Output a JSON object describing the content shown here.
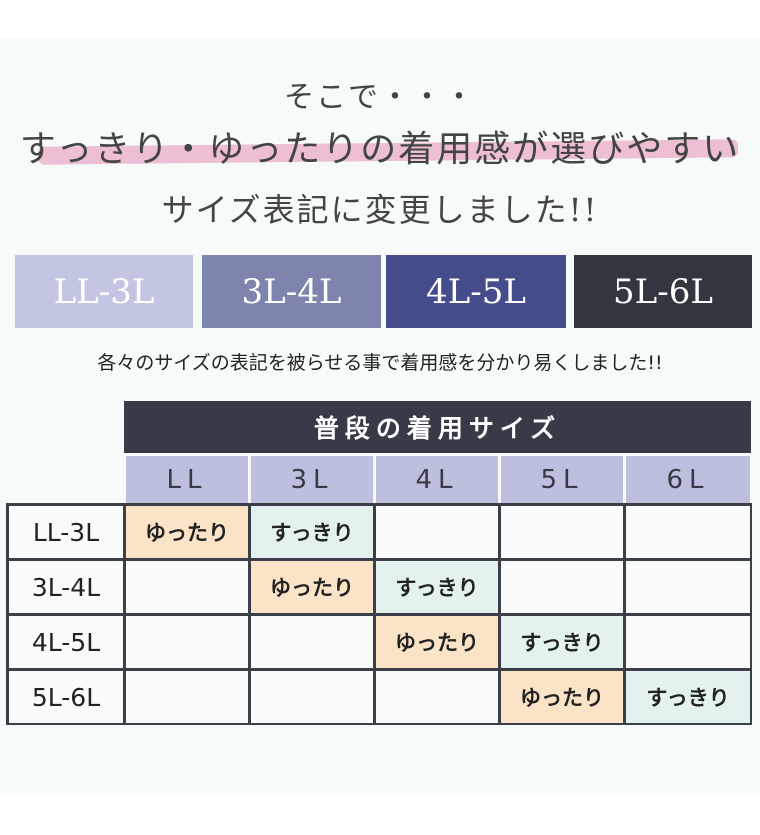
{
  "headline": {
    "line1": "そこで・・・",
    "line2": "すっきり・ゆったりの着用感が選びやすい",
    "line3": "サイズ表記に変更しました!!",
    "highlight_color": "#eebfd4"
  },
  "size_boxes": [
    {
      "label": "LL-3L",
      "color": "#c3c6e3"
    },
    {
      "label": "3L-4L",
      "color": "#7e84ae"
    },
    {
      "label": "4L-5L",
      "color": "#444c8c"
    },
    {
      "label": "5L-6L",
      "color": "#33353f"
    }
  ],
  "note": "各々のサイズの表記を被らせる事で着用感を分かり易くしました!!",
  "table": {
    "title": "普段の着用サイズ",
    "columns": [
      "LL",
      "3L",
      "4L",
      "5L",
      "6L"
    ],
    "rows": [
      {
        "label": "LL-3L",
        "cells": [
          "ゆったり",
          "すっきり",
          "",
          "",
          ""
        ]
      },
      {
        "label": "3L-4L",
        "cells": [
          "",
          "ゆったり",
          "すっきり",
          "",
          ""
        ]
      },
      {
        "label": "4L-5L",
        "cells": [
          "",
          "",
          "ゆったり",
          "すっきり",
          ""
        ]
      },
      {
        "label": "5L-6L",
        "cells": [
          "",
          "",
          "",
          "ゆったり",
          "すっきり"
        ]
      }
    ],
    "colors": {
      "loose": "#fae3c7",
      "fitted": "#e3f2ef",
      "empty": "#f8fbfa",
      "header": "#bcbfde",
      "title_bg": "#383a47"
    }
  }
}
